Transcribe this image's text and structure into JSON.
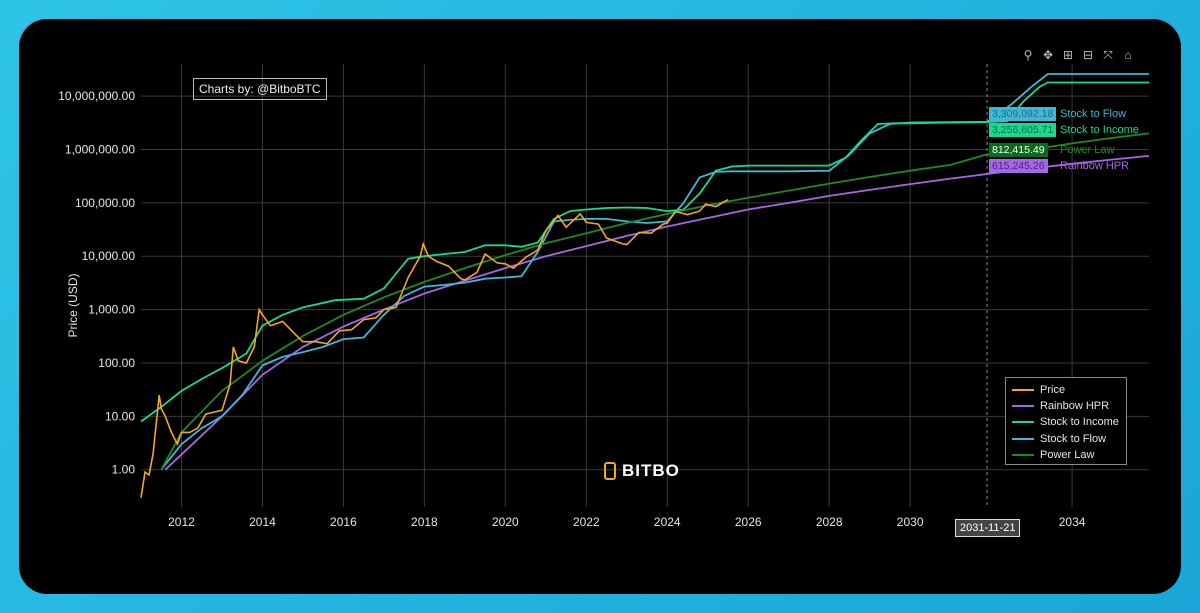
{
  "credit_label": "Charts by: @BitboBTC",
  "logo_text": "BITBO",
  "modebar_icons": [
    "zoom-icon",
    "pan-icon",
    "zoom-in-icon",
    "zoom-out-icon",
    "autoscale-icon",
    "home-icon"
  ],
  "hover": {
    "x_label": "2031-11-21",
    "entries": [
      {
        "name": "Stock to Flow",
        "value": "3,309,092.18",
        "color": "#3fb7d6",
        "text_color": "#1a6f8a"
      },
      {
        "name": "Stock to Income",
        "value": "3,256,605.71",
        "color": "#19d98f",
        "text_color": "#0b6b47"
      },
      {
        "name": "Power Law",
        "value": "812,415.49",
        "color": "#0a6b1a",
        "text_color": "#ffffff"
      },
      {
        "name": "Rainbow HPR",
        "value": "615,245.26",
        "color": "#a566e8",
        "text_color": "#4a2277"
      }
    ]
  },
  "chart_data": {
    "type": "line",
    "ylabel": "Price (USD)",
    "xlabel": "",
    "y_scale": "log",
    "ylim": [
      0.2,
      40000000
    ],
    "xlim": [
      2011.0,
      2035.9
    ],
    "y_ticks": [
      1,
      10,
      100,
      1000,
      10000,
      100000,
      1000000,
      10000000
    ],
    "y_tick_labels": [
      "1.00",
      "10.00",
      "100.00",
      "1,000.00",
      "10,000.00",
      "100,000.00",
      "1,000,000.00",
      "10,000,000.00"
    ],
    "x_ticks": [
      2012,
      2014,
      2016,
      2018,
      2020,
      2022,
      2024,
      2026,
      2028,
      2030,
      2034
    ],
    "grid": true,
    "legend_position": "bottom-right",
    "series": [
      {
        "name": "Price",
        "color": "#f5a623",
        "x": [
          2011.0,
          2011.1,
          2011.2,
          2011.3,
          2011.45,
          2011.5,
          2011.6,
          2011.75,
          2011.9,
          2012.0,
          2012.2,
          2012.4,
          2012.6,
          2012.8,
          2013.0,
          2013.2,
          2013.28,
          2013.4,
          2013.6,
          2013.8,
          2013.92,
          2014.0,
          2014.2,
          2014.5,
          2014.8,
          2015.0,
          2015.3,
          2015.6,
          2015.9,
          2016.2,
          2016.5,
          2016.8,
          2017.0,
          2017.3,
          2017.6,
          2017.9,
          2017.97,
          2018.1,
          2018.3,
          2018.6,
          2018.9,
          2019.0,
          2019.3,
          2019.5,
          2019.8,
          2020.0,
          2020.2,
          2020.5,
          2020.8,
          2021.0,
          2021.3,
          2021.5,
          2021.85,
          2022.0,
          2022.3,
          2022.5,
          2022.9,
          2023.0,
          2023.3,
          2023.6,
          2023.9,
          2024.0,
          2024.2,
          2024.5,
          2024.8,
          2024.95,
          2025.2,
          2025.5
        ],
        "y": [
          0.3,
          0.9,
          0.8,
          2.0,
          25,
          14,
          10,
          5,
          3,
          5,
          5,
          6,
          11,
          12,
          13,
          40,
          200,
          110,
          100,
          200,
          1000,
          800,
          500,
          600,
          350,
          250,
          250,
          230,
          400,
          420,
          650,
          700,
          1000,
          1100,
          4000,
          10000,
          17000,
          10000,
          8000,
          6500,
          3800,
          3600,
          5000,
          11000,
          7500,
          7200,
          6000,
          9500,
          13000,
          30000,
          58000,
          35000,
          62000,
          43000,
          40000,
          22000,
          17000,
          16500,
          28000,
          27000,
          40000,
          42000,
          69000,
          60000,
          70000,
          95000,
          85000,
          115000
        ]
      },
      {
        "name": "Rainbow HPR",
        "color": "#a566e8",
        "x": [
          2011.6,
          2013.0,
          2014.0,
          2015.0,
          2016.0,
          2017.0,
          2018.0,
          2019.0,
          2020.0,
          2021.0,
          2022.0,
          2023.0,
          2024.0,
          2025.0,
          2026.0,
          2027.0,
          2028.0,
          2029.0,
          2030.0,
          2031.0,
          2032.0,
          2033.0,
          2034.0,
          2035.0,
          2035.9
        ],
        "y": [
          1.0,
          10,
          60,
          200,
          480,
          1000,
          2000,
          3500,
          6000,
          10000,
          15500,
          24000,
          36000,
          52000,
          75000,
          100000,
          135000,
          175000,
          225000,
          285000,
          355000,
          440000,
          540000,
          650000,
          760000
        ]
      },
      {
        "name": "Stock to Income",
        "color": "#19d98f",
        "x": [
          2011.0,
          2011.5,
          2012.0,
          2012.5,
          2013.0,
          2013.6,
          2014.0,
          2014.5,
          2015.0,
          2015.8,
          2016.5,
          2017.0,
          2017.6,
          2018.0,
          2018.5,
          2019.0,
          2019.5,
          2020.0,
          2020.4,
          2020.8,
          2021.2,
          2021.6,
          2022.0,
          2022.5,
          2023.0,
          2023.5,
          2024.0,
          2024.4,
          2024.8,
          2025.2,
          2025.6,
          2026.0,
          2027.0,
          2028.0,
          2028.4,
          2028.8,
          2029.2,
          2029.6,
          2030.0,
          2031.0,
          2031.9,
          2032.4,
          2032.8,
          2033.2,
          2033.4,
          2034.0,
          2035.0,
          2035.9
        ],
        "y": [
          8,
          15,
          30,
          50,
          80,
          150,
          500,
          800,
          1100,
          1500,
          1600,
          2500,
          9000,
          10000,
          11000,
          12000,
          16000,
          16000,
          15000,
          18000,
          50000,
          70000,
          75000,
          80000,
          82000,
          80000,
          70000,
          75000,
          150000,
          400000,
          480000,
          500000,
          500000,
          500000,
          700000,
          1500000,
          3000000,
          3100000,
          3100000,
          3200000,
          3256605,
          3400000,
          8000000,
          15000000,
          18000000,
          18000000,
          18000000,
          18000000
        ]
      },
      {
        "name": "Stock to Flow",
        "color": "#3fb7d6",
        "x": [
          2011.5,
          2012.0,
          2012.5,
          2013.0,
          2013.5,
          2014.0,
          2014.5,
          2015.0,
          2015.5,
          2016.0,
          2016.5,
          2017.0,
          2017.5,
          2018.0,
          2018.5,
          2019.0,
          2019.5,
          2020.0,
          2020.4,
          2020.8,
          2021.2,
          2021.6,
          2022.0,
          2022.5,
          2023.0,
          2023.5,
          2024.0,
          2024.4,
          2024.8,
          2025.2,
          2025.6,
          2026.0,
          2027.0,
          2028.0,
          2028.5,
          2029.0,
          2029.5,
          2030.0,
          2031.0,
          2031.9,
          2032.5,
          2033.0,
          2033.4,
          2034.0,
          2035.0,
          2035.9
        ],
        "y": [
          1.0,
          3,
          6,
          10,
          25,
          90,
          130,
          160,
          200,
          280,
          300,
          800,
          1800,
          2700,
          2900,
          3200,
          3800,
          4000,
          4200,
          12000,
          45000,
          48000,
          50000,
          50000,
          45000,
          42000,
          45000,
          100000,
          300000,
          380000,
          390000,
          390000,
          390000,
          400000,
          800000,
          2000000,
          3000000,
          3200000,
          3250000,
          3309092,
          7000000,
          15000000,
          26000000,
          26000000,
          26000000,
          26000000
        ]
      },
      {
        "name": "Power Law",
        "color": "#1f8a1f",
        "x": [
          2011.5,
          2012.0,
          2013.0,
          2014.0,
          2015.0,
          2016.0,
          2017.0,
          2018.0,
          2019.0,
          2020.0,
          2021.0,
          2022.0,
          2023.0,
          2024.0,
          2025.0,
          2026.0,
          2027.0,
          2028.0,
          2029.0,
          2030.0,
          2031.0,
          2031.9,
          2033.0,
          2034.0,
          2035.0,
          2035.9
        ],
        "y": [
          1.0,
          5,
          30,
          110,
          320,
          800,
          1700,
          3300,
          6000,
          10500,
          17500,
          27000,
          42000,
          62000,
          90000,
          125000,
          170000,
          230000,
          305000,
          400000,
          515000,
          812415,
          1000000,
          1300000,
          1650000,
          2000000
        ]
      }
    ]
  }
}
